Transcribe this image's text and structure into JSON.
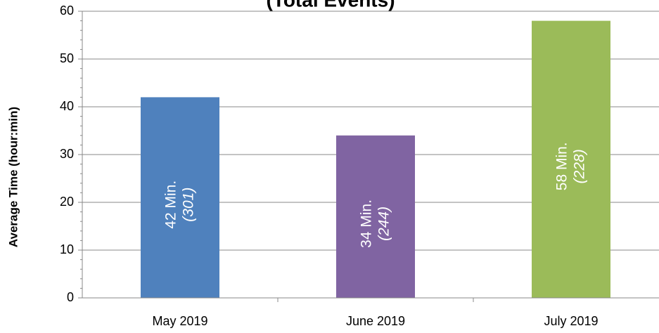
{
  "chart_data": {
    "type": "bar",
    "title": "(Total Events)",
    "y_label": "Average Time (hour:min)",
    "categories": [
      "May 2019",
      "June 2019",
      "July 2019"
    ],
    "values": [
      42,
      34,
      58
    ],
    "value_labels": [
      "42 Min.",
      "34 Min.",
      "58 Min."
    ],
    "event_labels": [
      "(301)",
      "(244)",
      "(228)"
    ],
    "colors": [
      "#4f81bd",
      "#8064a2",
      "#9bbb59"
    ],
    "ylim": [
      0,
      60
    ],
    "yticks": [
      0,
      10,
      20,
      30,
      40,
      50,
      60
    ],
    "grid": true
  }
}
